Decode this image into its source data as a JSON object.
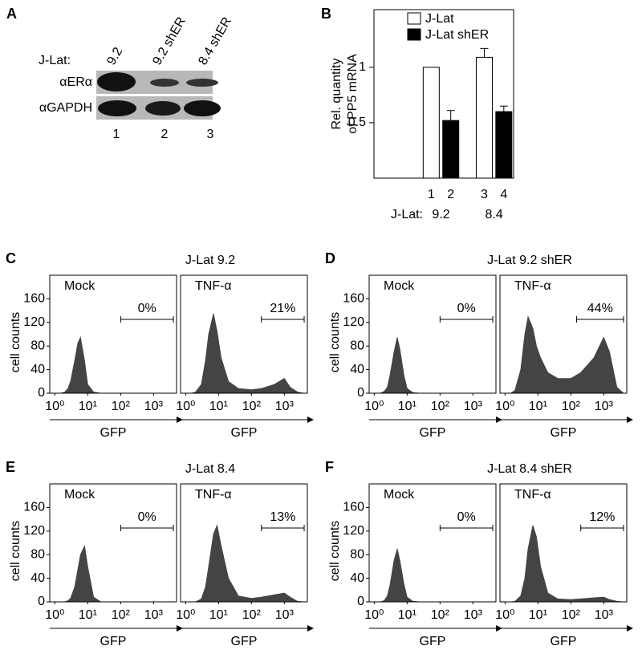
{
  "panel_a": {
    "letter": "A",
    "row_label": "J-Lat:",
    "lanes": [
      "9.2",
      "9.2 shER",
      "8.4 shER"
    ],
    "antibodies": [
      "αERα",
      "αGAPDH"
    ],
    "lane_numbers": [
      "1",
      "2",
      "3"
    ]
  },
  "chart_data": [
    {
      "type": "bar",
      "panel": "B",
      "ylabel": [
        "Rel. quantity",
        "of PP5 mRNA"
      ],
      "categories": [
        "1",
        "2",
        "3",
        "4"
      ],
      "group_label": "J-Lat:",
      "groups": [
        "9.2",
        "8.4"
      ],
      "series": [
        {
          "name": "J-Lat",
          "color": "#ffffff",
          "values": [
            1,
            null,
            1.09,
            null
          ],
          "errors": [
            null,
            null,
            0.08,
            null
          ]
        },
        {
          "name": "J-Lat shER",
          "color": "#000000",
          "values": [
            null,
            0.52,
            null,
            0.6
          ],
          "errors": [
            null,
            0.09,
            null,
            0.05
          ]
        }
      ],
      "ylim": [
        0,
        1.52
      ],
      "yticks": [
        0.5,
        1
      ],
      "legend": "top"
    },
    {
      "type": "flow",
      "panel": "C",
      "title": "J-Lat 9.2",
      "ylabel": "cell counts",
      "log_x": true,
      "xlim": [
        0.7,
        5000
      ],
      "xticks": [
        {
          "value": 1,
          "label": "10⁰"
        },
        {
          "value": 10,
          "label": "10¹"
        },
        {
          "value": 100,
          "label": "10²"
        },
        {
          "value": 1000,
          "label": "10³"
        }
      ],
      "ylim": [
        0,
        200
      ],
      "yticks": [
        0,
        40,
        80,
        120,
        160
      ],
      "color": "#444444",
      "plots": [
        {
          "name": "Mock",
          "xlabel": "GFP",
          "gate": [
            100,
            4000
          ],
          "gate_percent": {
            "value": 0,
            "label": "0%"
          },
          "x": [
            1.5,
            2,
            2.5,
            3,
            4,
            5,
            6,
            8,
            10,
            15,
            25
          ],
          "values": [
            0,
            2,
            8,
            20,
            55,
            85,
            95,
            55,
            15,
            2,
            0
          ]
        },
        {
          "name": "TNF-α",
          "xlabel": "GFP",
          "gate": [
            200,
            4000
          ],
          "gate_percent": {
            "value": 21,
            "label": "21%"
          },
          "x": [
            1.5,
            2,
            3,
            4,
            5,
            7,
            9,
            12,
            20,
            40,
            100,
            200,
            500,
            1000,
            1500,
            2500,
            4000
          ],
          "values": [
            0,
            2,
            15,
            55,
            100,
            135,
            105,
            60,
            20,
            8,
            6,
            8,
            15,
            25,
            10,
            2,
            0
          ]
        }
      ]
    },
    {
      "type": "flow",
      "panel": "D",
      "title": "J-Lat 9.2 shER",
      "ylabel": "cell counts",
      "log_x": true,
      "xlim": [
        0.7,
        5000
      ],
      "xticks": [
        {
          "value": 1,
          "label": "10⁰"
        },
        {
          "value": 10,
          "label": "10¹"
        },
        {
          "value": 100,
          "label": "10²"
        },
        {
          "value": 1000,
          "label": "10³"
        }
      ],
      "ylim": [
        0,
        200
      ],
      "yticks": [
        0,
        40,
        80,
        120,
        160
      ],
      "color": "#444444",
      "plots": [
        {
          "name": "Mock",
          "xlabel": "GFP",
          "gate": [
            100,
            4000
          ],
          "gate_percent": {
            "value": 0,
            "label": "0%"
          },
          "x": [
            1.5,
            2,
            2.5,
            3,
            4,
            5,
            6,
            8,
            10,
            15,
            25
          ],
          "values": [
            0,
            3,
            10,
            30,
            70,
            95,
            75,
            30,
            8,
            1,
            0
          ]
        },
        {
          "name": "TNF-α",
          "xlabel": "GFP",
          "gate": [
            150,
            4000
          ],
          "gate_percent": {
            "value": 44,
            "label": "44%"
          },
          "x": [
            1.5,
            2,
            3,
            4,
            5,
            7,
            9,
            12,
            20,
            40,
            100,
            200,
            500,
            1000,
            1500,
            2500,
            4000
          ],
          "values": [
            0,
            5,
            40,
            100,
            130,
            110,
            80,
            60,
            35,
            25,
            25,
            35,
            60,
            95,
            70,
            10,
            0
          ]
        }
      ]
    },
    {
      "type": "flow",
      "panel": "E",
      "title": "J-Lat 8.4",
      "ylabel": "cell counts",
      "log_x": true,
      "xlim": [
        0.7,
        5000
      ],
      "xticks": [
        {
          "value": 1,
          "label": "10⁰"
        },
        {
          "value": 10,
          "label": "10¹"
        },
        {
          "value": 100,
          "label": "10²"
        },
        {
          "value": 1000,
          "label": "10³"
        }
      ],
      "ylim": [
        0,
        200
      ],
      "yticks": [
        0,
        40,
        80,
        120,
        160
      ],
      "color": "#444444",
      "plots": [
        {
          "name": "Mock",
          "xlabel": "GFP",
          "gate": [
            100,
            4000
          ],
          "gate_percent": {
            "value": 0,
            "label": "0%"
          },
          "x": [
            1.5,
            2,
            2.5,
            3,
            4,
            5,
            6,
            8,
            10,
            15,
            25
          ],
          "values": [
            0,
            0,
            2,
            6,
            25,
            55,
            80,
            95,
            60,
            8,
            0
          ]
        },
        {
          "name": "TNF-α",
          "xlabel": "GFP",
          "gate": [
            200,
            4000
          ],
          "gate_percent": {
            "value": 13,
            "label": "13%"
          },
          "x": [
            1.5,
            2,
            3,
            4,
            5,
            7,
            9,
            12,
            20,
            40,
            100,
            200,
            500,
            1000,
            1500,
            2500,
            4000
          ],
          "values": [
            0,
            0,
            5,
            25,
            60,
            115,
            130,
            95,
            40,
            10,
            6,
            8,
            12,
            15,
            8,
            1,
            0
          ]
        }
      ]
    },
    {
      "type": "flow",
      "panel": "F",
      "title": "J-Lat 8.4 shER",
      "ylabel": "cell counts",
      "log_x": true,
      "xlim": [
        0.7,
        5000
      ],
      "xticks": [
        {
          "value": 1,
          "label": "10⁰"
        },
        {
          "value": 10,
          "label": "10¹"
        },
        {
          "value": 100,
          "label": "10²"
        },
        {
          "value": 1000,
          "label": "10³"
        }
      ],
      "ylim": [
        0,
        200
      ],
      "yticks": [
        0,
        40,
        80,
        120,
        160
      ],
      "color": "#444444",
      "plots": [
        {
          "name": "Mock",
          "xlabel": "GFP",
          "gate": [
            100,
            4000
          ],
          "gate_percent": {
            "value": 0,
            "label": "0%"
          },
          "x": [
            1.5,
            2,
            2.5,
            3,
            4,
            5,
            6,
            8,
            10,
            15,
            25
          ],
          "values": [
            0,
            2,
            10,
            28,
            70,
            90,
            70,
            30,
            8,
            1,
            0
          ]
        },
        {
          "name": "TNF-α",
          "xlabel": "GFP",
          "gate": [
            200,
            4000
          ],
          "gate_percent": {
            "value": 12,
            "label": "12%"
          },
          "x": [
            1.5,
            2,
            3,
            4,
            5,
            7,
            9,
            12,
            20,
            40,
            100,
            200,
            500,
            1000,
            1500,
            2500,
            4000
          ],
          "values": [
            0,
            1,
            10,
            40,
            90,
            130,
            110,
            60,
            15,
            5,
            4,
            5,
            7,
            8,
            4,
            1,
            0
          ]
        }
      ]
    }
  ]
}
